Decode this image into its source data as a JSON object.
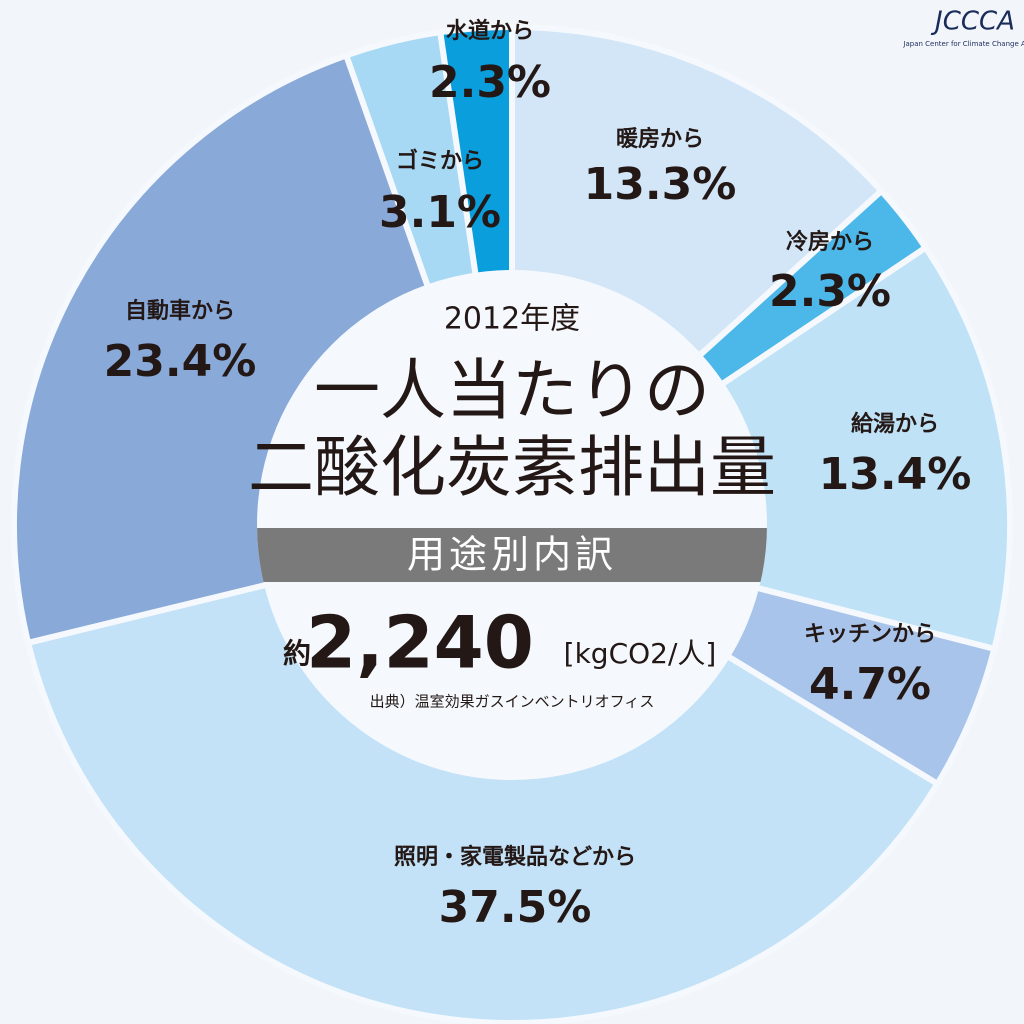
{
  "chart_data": {
    "type": "donut",
    "subtitle": "2012年度",
    "title_lines": [
      "一人当たりの",
      "二酸化炭素排出量"
    ],
    "banner": "用途別内訳",
    "total_prefix": "約",
    "total": "2,240",
    "total_unit": "[kgCO2/人]",
    "source": "出典）温室効果ガスインベントリオフィス",
    "categories": [
      "暖房から",
      "冷房から",
      "給湯から",
      "キッチンから",
      "照明・家電製品などから",
      "自動車から",
      "ゴミから",
      "水道から"
    ],
    "values": [
      13.3,
      2.3,
      13.4,
      4.7,
      37.5,
      23.4,
      3.1,
      2.3
    ],
    "value_labels": [
      "13.3%",
      "2.3%",
      "13.4%",
      "4.7%",
      "37.5%",
      "23.4%",
      "3.1%",
      "2.3%"
    ],
    "colors": [
      "#d3e6f8",
      "#4cb8ea",
      "#bfe2f7",
      "#a9c4ea",
      "#c3e2f7",
      "#89a9d9",
      "#a7d9f4",
      "#0a9edd"
    ]
  },
  "logo": {
    "text": "JCCCA",
    "caption": "Japan Center for Climate Change Actions"
  }
}
